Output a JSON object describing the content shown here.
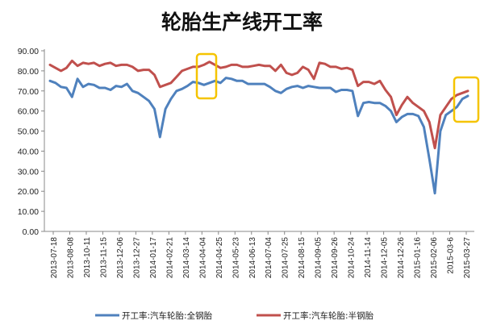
{
  "chart_data": {
    "type": "line",
    "title": "轮胎生产线开工率",
    "xlabel": "",
    "ylabel": "",
    "ylim": [
      0,
      90
    ],
    "yticks": [
      "0.00",
      "10.00",
      "20.00",
      "30.00",
      "40.00",
      "50.00",
      "60.00",
      "70.00",
      "80.00",
      "90.00"
    ],
    "grid": false,
    "legend_position": "bottom",
    "x_tick_labels": [
      "2013-07-18",
      "2013-08-08",
      "2013-10-11",
      "2013-11-15",
      "2013-12-06",
      "2013-12-27",
      "2014-01-17",
      "2014-02-21",
      "2014-03-14",
      "2014-04-04",
      "2014-04-25",
      "2014-05-23",
      "2014-06-13",
      "2014-07-04",
      "2014-07-25",
      "2014-08-15",
      "2014-09-05",
      "2014-09-26",
      "2014-10-24",
      "2014-11-14",
      "2014-12-05",
      "2014-12-26",
      "2015-01-16",
      "2015-02-06",
      "2015-03-6",
      "2015-03-27"
    ],
    "series": [
      {
        "name": "开工率:汽车轮胎:全钢胎",
        "color": "#4F81BD",
        "values": [
          75,
          74,
          72,
          71.5,
          67,
          76,
          72,
          73.5,
          73,
          71.5,
          71.5,
          70.5,
          72.5,
          72,
          73.5,
          70,
          69,
          67,
          65,
          61,
          47,
          61,
          66,
          70,
          71,
          72.5,
          74.5,
          74,
          73,
          74,
          75,
          74,
          76.5,
          76,
          75,
          75,
          73.5,
          73.5,
          73.5,
          73.5,
          72,
          70,
          69,
          71,
          72,
          72.5,
          71.5,
          72.5,
          72,
          71.5,
          71.5,
          71.5,
          69.5,
          70.5,
          70.5,
          70,
          57.5,
          64,
          64.5,
          64,
          64,
          62.5,
          60,
          54.5,
          57,
          58.5,
          58.5,
          57.5,
          52,
          36,
          19,
          50,
          58,
          60,
          62,
          66,
          67.5
        ]
      },
      {
        "name": "开工率:汽车轮胎:半钢胎",
        "color": "#C0504D",
        "values": [
          83,
          81.5,
          80,
          81.5,
          85,
          82.5,
          84,
          83.5,
          84,
          82.5,
          83.5,
          84,
          82.5,
          83,
          83,
          82,
          80,
          80.5,
          80.5,
          78,
          72,
          73,
          74,
          77,
          80,
          81,
          82,
          82,
          83,
          84.5,
          83,
          81.5,
          82,
          83,
          83,
          82,
          82,
          82.5,
          83,
          82.5,
          82.5,
          80,
          83,
          79,
          78,
          79,
          82,
          80.5,
          76,
          84,
          83.5,
          82,
          82,
          81,
          81.5,
          80.5,
          72.5,
          74.5,
          74.5,
          73.5,
          75,
          70.5,
          67,
          58,
          63,
          67,
          64,
          62,
          60,
          54.5,
          41.5,
          58,
          62,
          66,
          68,
          69,
          70
        ]
      }
    ]
  },
  "legend": {
    "series1_label": "开工率:汽车轮胎:全钢胎",
    "series2_label": "开工率:汽车轮胎:半钢胎"
  },
  "highlight_color": "#F5C400"
}
